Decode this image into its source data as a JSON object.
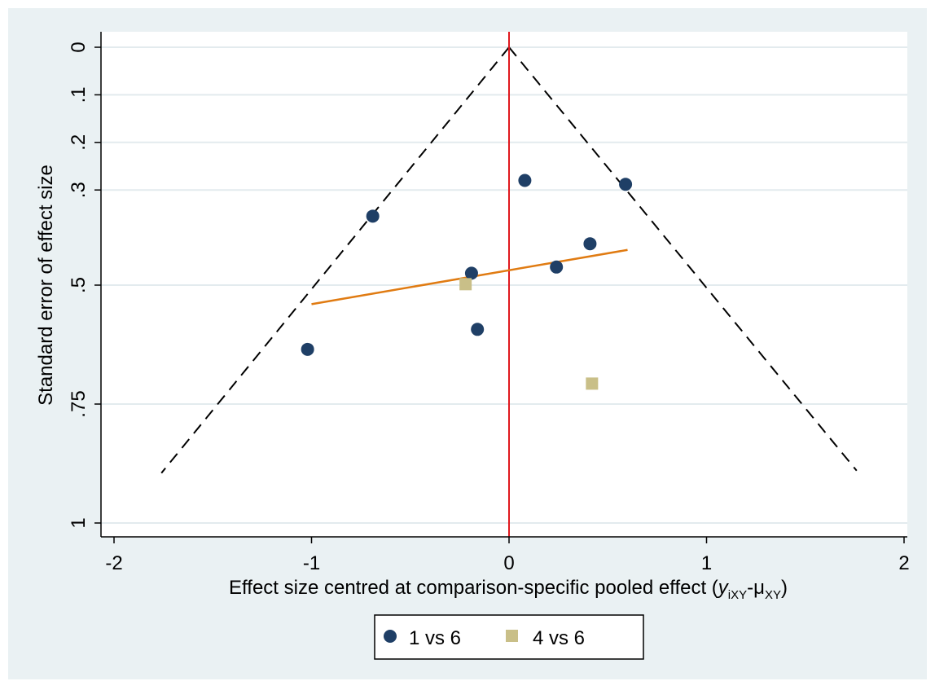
{
  "chart_data": {
    "type": "scatter",
    "title": "",
    "xlabel_main": "Effect size centred at comparison-specific pooled effect (",
    "xlabel_y": "y",
    "xlabel_y_sub": "iXY",
    "xlabel_dash": "-μ",
    "xlabel_mu_sub": "XY",
    "xlabel_close": ")",
    "ylabel": "Standard error of effect size",
    "xlim": [
      -2,
      2
    ],
    "ylim": [
      0,
      1
    ],
    "y_reversed": true,
    "grid": true,
    "legend_position": "bottom",
    "x_ticks": [
      {
        "value": -2,
        "label": "-2"
      },
      {
        "value": -1,
        "label": "-1"
      },
      {
        "value": 0,
        "label": "0"
      },
      {
        "value": 1,
        "label": "1"
      },
      {
        "value": 2,
        "label": "2"
      }
    ],
    "y_ticks": [
      {
        "value": 0,
        "label": "0"
      },
      {
        "value": 0.1,
        "label": ".1"
      },
      {
        "value": 0.2,
        "label": ".2"
      },
      {
        "value": 0.3,
        "label": ".3"
      },
      {
        "value": 0.5,
        "label": ".5"
      },
      {
        "value": 0.75,
        "label": ".75"
      },
      {
        "value": 1,
        "label": "1"
      }
    ],
    "series": [
      {
        "name": "1 vs 6",
        "marker": "circle",
        "color": "#1f3f66",
        "points": [
          {
            "x": -0.69,
            "y": 0.355
          },
          {
            "x": 0.08,
            "y": 0.28
          },
          {
            "x": 0.59,
            "y": 0.288
          },
          {
            "x": 0.41,
            "y": 0.413
          },
          {
            "x": -0.19,
            "y": 0.475
          },
          {
            "x": 0.24,
            "y": 0.462
          },
          {
            "x": -0.16,
            "y": 0.593
          },
          {
            "x": -1.02,
            "y": 0.635
          }
        ]
      },
      {
        "name": "4 vs 6",
        "marker": "square",
        "color": "#c9bf88",
        "points": [
          {
            "x": -0.22,
            "y": 0.498
          },
          {
            "x": 0.42,
            "y": 0.707
          }
        ]
      }
    ],
    "funnel": {
      "apex": [
        0,
        0
      ],
      "left": [
        -1.76,
        0.895
      ],
      "right": [
        1.76,
        0.89
      ],
      "color": "#000000"
    },
    "reference_line": {
      "x": 0,
      "color": "#e0191f"
    },
    "fit_line": {
      "points": [
        [
          -1.0,
          0.54
        ],
        [
          0.6,
          0.426
        ]
      ],
      "color": "#e07b12"
    },
    "colors": {
      "outer_bg": "#eaf1f3",
      "plot_bg": "#ffffff",
      "grid": "#e3ebee"
    }
  }
}
